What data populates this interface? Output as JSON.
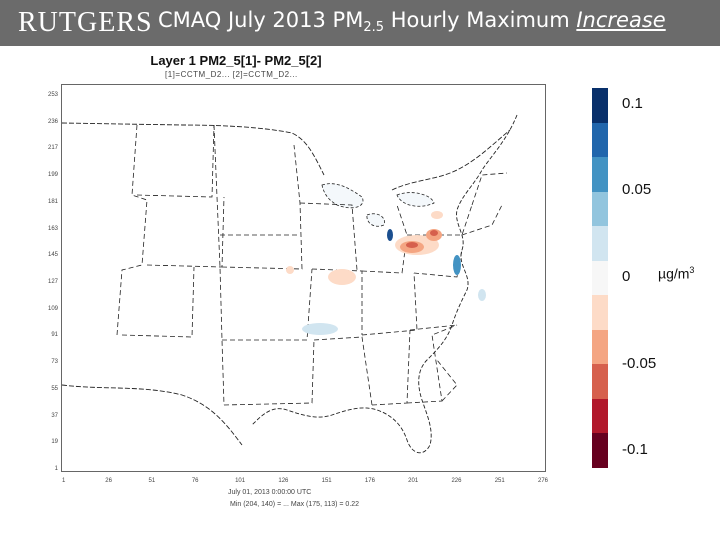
{
  "header": {
    "logo_text": "RUTGERS",
    "title_pre": "CMAQ July 2013 PM",
    "title_sub": "2.5",
    "title_mid": " Hourly Maximum ",
    "title_emph": "Increase",
    "bg_color": "#6b6b6b"
  },
  "plot": {
    "title": "Layer 1 PM2_5[1]- PM2_5[2]",
    "subtitle": "[1]=CCTM_D2... [2]=CCTM_D2...",
    "y_ticks": [
      "253",
      "236",
      "217",
      "199",
      "181",
      "163",
      "145",
      "127",
      "109",
      "91",
      "73",
      "55",
      "37",
      "19",
      "1"
    ],
    "x_ticks": [
      "1",
      "26",
      "51",
      "76",
      "101",
      "126",
      "151",
      "176",
      "201",
      "226",
      "251",
      "276"
    ],
    "footer_line1": "July 01, 2013 0:00:00 UTC",
    "footer_line2": "Min (204, 140) = ... Max (175, 113) = 0.22"
  },
  "legend": {
    "labels": [
      "0.1",
      "0.05",
      "0",
      "-0.05",
      "-0.1"
    ],
    "unit": "µg/m",
    "unit_sup": "3",
    "colors": [
      "#08306b",
      "#2166ac",
      "#4393c3",
      "#92c5de",
      "#d1e5f0",
      "#f7f7f7",
      "#fddbc7",
      "#f4a582",
      "#d6604d",
      "#b2182b",
      "#67001f"
    ]
  }
}
